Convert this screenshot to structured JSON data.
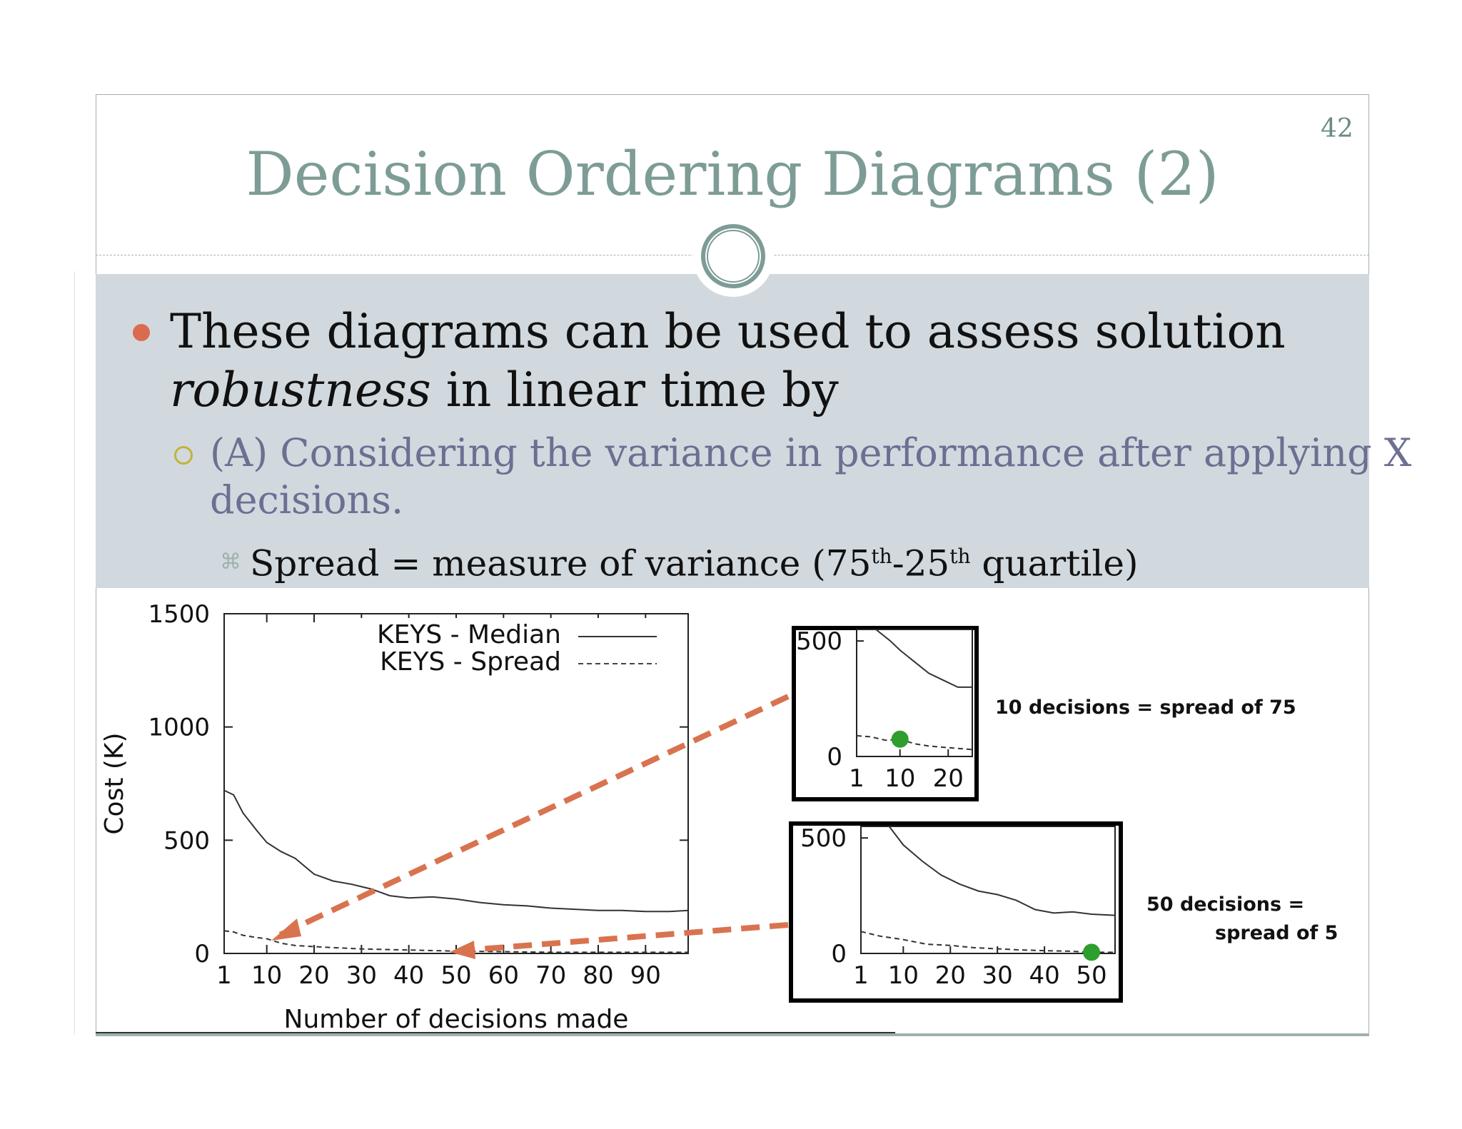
{
  "slide": {
    "page_number": "42",
    "title": "Decision Ordering Diagrams (2)",
    "bullet1": {
      "text_a": "These diagrams can be used to assess solution",
      "text_b_italic": "robustness",
      "text_b_rest": " in linear time by"
    },
    "bullet2": {
      "line1": "(A) Considering the variance in performance after applying X",
      "line2": "decisions."
    },
    "bullet3": {
      "pre": "Spread = measure of variance (75",
      "sup1": "th",
      "mid": "-25",
      "sup2": "th",
      "post": " quartile)"
    },
    "annotations": {
      "inset1_label": "10 decisions = spread of 75",
      "inset2_label_line1": "50 decisions =",
      "inset2_label_line2": "spread of 5"
    },
    "colors": {
      "title": "#7d9c96",
      "band": "#d1d9de",
      "accent_bullet": "#dc6a4e",
      "arrow": "#d9734f",
      "marker": "#2e9e2e"
    }
  },
  "chart_data": [
    {
      "type": "line",
      "xlabel": "Number of decisions made",
      "ylabel": "Cost (K)",
      "xlim": [
        1,
        99
      ],
      "ylim": [
        0,
        1500
      ],
      "x_ticks": [
        "1",
        "10",
        "20",
        "30",
        "40",
        "50",
        "60",
        "70",
        "80",
        "90"
      ],
      "y_ticks": [
        "0",
        "500",
        "1000",
        "1500"
      ],
      "legend": "top-right",
      "series": [
        {
          "name": "KEYS - Median",
          "style": "solid",
          "x": [
            1,
            3,
            5,
            8,
            10,
            13,
            16,
            20,
            24,
            28,
            32,
            36,
            40,
            45,
            50,
            55,
            60,
            65,
            70,
            75,
            80,
            85,
            90,
            95,
            99
          ],
          "values": [
            720,
            700,
            620,
            540,
            490,
            450,
            420,
            350,
            320,
            305,
            285,
            255,
            245,
            250,
            240,
            225,
            215,
            210,
            200,
            195,
            190,
            190,
            185,
            185,
            190
          ]
        },
        {
          "name": "KEYS - Spread",
          "style": "dashed",
          "x": [
            1,
            3,
            5,
            8,
            10,
            13,
            16,
            20,
            25,
            30,
            40,
            50,
            60,
            70,
            80,
            90,
            99
          ],
          "values": [
            100,
            95,
            80,
            70,
            65,
            45,
            35,
            30,
            25,
            20,
            15,
            10,
            8,
            5,
            5,
            5,
            5
          ]
        }
      ]
    },
    {
      "type": "line",
      "xlim": [
        1,
        25
      ],
      "ylim": [
        0,
        550
      ],
      "x_ticks": [
        "1",
        "10",
        "20"
      ],
      "y_ticks": [
        "0",
        "500"
      ],
      "series": [
        {
          "style": "solid",
          "x": [
            5,
            8,
            10,
            13,
            16,
            19,
            22,
            25
          ],
          "values": [
            550,
            500,
            460,
            410,
            360,
            330,
            300,
            300
          ]
        },
        {
          "style": "dashed",
          "x": [
            1,
            4,
            7,
            10,
            13,
            16,
            19,
            22,
            25
          ],
          "values": [
            90,
            85,
            70,
            75,
            55,
            45,
            40,
            35,
            30
          ]
        }
      ],
      "highlight": {
        "x": 10,
        "y": 75
      }
    },
    {
      "type": "line",
      "xlim": [
        1,
        55
      ],
      "ylim": [
        0,
        550
      ],
      "x_ticks": [
        "1",
        "10",
        "20",
        "30",
        "40",
        "50"
      ],
      "y_ticks": [
        "0",
        "500"
      ],
      "series": [
        {
          "style": "solid",
          "x": [
            7,
            10,
            14,
            18,
            22,
            26,
            30,
            34,
            38,
            42,
            46,
            50,
            55
          ],
          "values": [
            550,
            470,
            400,
            340,
            300,
            270,
            255,
            230,
            190,
            175,
            180,
            170,
            165
          ]
        },
        {
          "style": "dashed",
          "x": [
            1,
            5,
            10,
            15,
            20,
            25,
            30,
            35,
            40,
            45,
            50,
            55
          ],
          "values": [
            95,
            75,
            60,
            40,
            35,
            25,
            20,
            15,
            12,
            10,
            5,
            5
          ]
        }
      ],
      "highlight": {
        "x": 50,
        "y": 5
      }
    }
  ]
}
